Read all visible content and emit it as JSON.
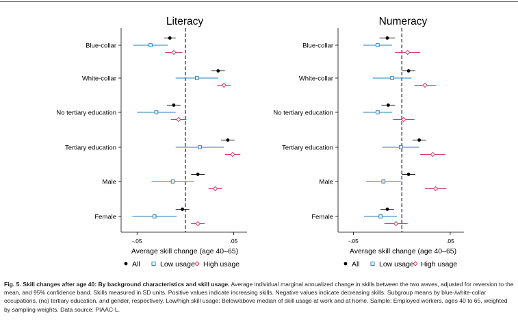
{
  "colors": {
    "all": "#000000",
    "low": "#1f7fbf",
    "high": "#d63a6a",
    "zero_line": "#000000",
    "axis": "#000000"
  },
  "legend": {
    "all": "All",
    "low": "Low usage",
    "high": "High usage"
  },
  "caption": {
    "label": "Fig. 5. Skill changes after age 40: By background characteristics and skill usage.",
    "text": "Average individual marginal annualized change in skills between the two waves, adjusted for reversion to the mean, and 95% confidence band. Skills measured in SD units. Positive values indicate increasing skills. Negative values indicate decreasing skills. Subgroup means by blue-/white-collar occupations, (no) tertiary education, and gender, respectively. Low/high skill usage: Below/above median of skill usage at work and at home. Sample: Employed workers, ages 40 to 65, weighted by sampling weights. Data source: PIAAC-L."
  },
  "chart_data": [
    {
      "type": "dot-whisker",
      "title": "Literacy",
      "xlabel": "Average skill change (age 40–65)",
      "xlim": [
        -0.0665,
        0.0639
      ],
      "xticks": [
        -0.05,
        0.05
      ],
      "xtick_labels": [
        "-.05",
        ".05"
      ],
      "zero_line": 0,
      "categories": [
        "Blue-collar",
        "White-collar",
        "No tertiary education",
        "Tertiary education",
        "Male",
        "Female"
      ],
      "series": [
        {
          "name": "All",
          "values": [
            -0.016,
            0.034,
            -0.012,
            0.044,
            0.013,
            -0.003
          ],
          "ci_low": [
            -0.022,
            0.027,
            -0.019,
            0.037,
            0.006,
            -0.01
          ],
          "ci_high": [
            -0.01,
            0.041,
            -0.005,
            0.051,
            0.02,
            0.004
          ]
        },
        {
          "name": "Low usage",
          "values": [
            -0.036,
            0.012,
            -0.03,
            0.015,
            -0.013,
            -0.032
          ],
          "ci_low": [
            -0.054,
            -0.01,
            -0.05,
            -0.01,
            -0.035,
            -0.055
          ],
          "ci_high": [
            -0.018,
            0.034,
            -0.01,
            0.04,
            0.009,
            -0.009
          ]
        },
        {
          "name": "High usage",
          "values": [
            -0.012,
            0.04,
            -0.007,
            0.049,
            0.031,
            0.013
          ],
          "ci_low": [
            -0.021,
            0.033,
            -0.015,
            0.041,
            0.024,
            0.006
          ],
          "ci_high": [
            -0.003,
            0.047,
            0.001,
            0.057,
            0.038,
            0.02
          ]
        }
      ]
    },
    {
      "type": "dot-whisker",
      "title": "Numeracy",
      "xlabel": "Average skill change (age 40–65)",
      "xlim": [
        -0.0659,
        0.0642
      ],
      "xticks": [
        -0.05,
        0.05
      ],
      "xtick_labels": [
        "-.05",
        ".05"
      ],
      "zero_line": 0,
      "categories": [
        "Blue-collar",
        "White-collar",
        "No tertiary education",
        "Tertiary education",
        "Male",
        "Female"
      ],
      "series": [
        {
          "name": "All",
          "values": [
            -0.015,
            0.007,
            -0.014,
            0.018,
            0.007,
            -0.015
          ],
          "ci_low": [
            -0.023,
            0.0,
            -0.021,
            0.011,
            0.0,
            -0.022
          ],
          "ci_high": [
            -0.007,
            0.014,
            -0.007,
            0.025,
            0.014,
            -0.008
          ]
        },
        {
          "name": "Low usage",
          "values": [
            -0.025,
            -0.01,
            -0.025,
            -0.001,
            -0.019,
            -0.022
          ],
          "ci_low": [
            -0.04,
            -0.03,
            -0.04,
            -0.02,
            -0.037,
            -0.039
          ],
          "ci_high": [
            -0.01,
            0.01,
            -0.01,
            0.018,
            -0.001,
            -0.005
          ]
        },
        {
          "name": "High usage",
          "values": [
            0.006,
            0.024,
            0.002,
            0.032,
            0.035,
            -0.006
          ],
          "ci_low": [
            -0.007,
            0.013,
            -0.009,
            0.019,
            0.024,
            -0.018
          ],
          "ci_high": [
            0.019,
            0.035,
            0.013,
            0.045,
            0.046,
            0.006
          ]
        }
      ]
    }
  ]
}
